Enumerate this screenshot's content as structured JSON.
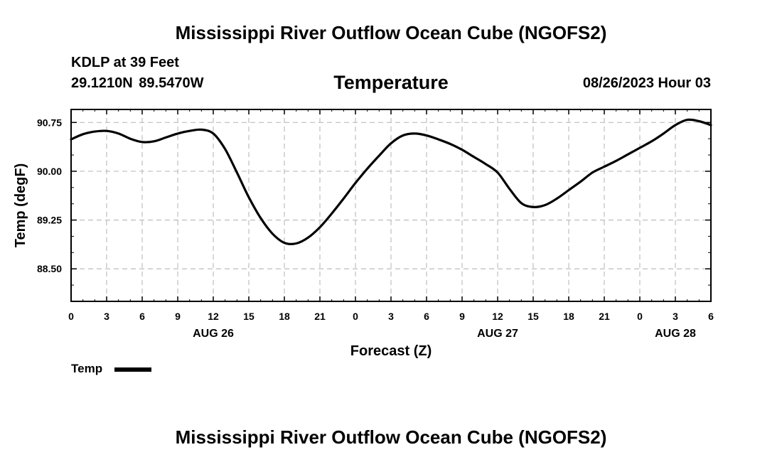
{
  "header": {
    "title": "Mississippi River Outflow Ocean Cube (NGOFS2)",
    "station": "KDLP at 39 Feet",
    "coordinates": "29.1210N  89.5470W",
    "chart_title": "Temperature",
    "datetime": "08/26/2023 Hour 03"
  },
  "footer": {
    "title": "Mississippi River Outflow Ocean Cube (NGOFS2)"
  },
  "legend": {
    "label": "Temp",
    "color": "#000000"
  },
  "chart_data": {
    "type": "line",
    "title": "Temperature",
    "xlabel": "Forecast (Z)",
    "ylabel": "Temp (degF)",
    "xlim": [
      0,
      54
    ],
    "ylim": [
      88.0,
      90.95
    ],
    "grid": true,
    "legend_position": "bottom-left",
    "x_ticks": [
      0,
      3,
      6,
      9,
      12,
      15,
      18,
      21,
      24,
      27,
      30,
      33,
      36,
      39,
      42,
      45,
      48,
      51,
      54
    ],
    "x_tick_labels": [
      "0",
      "3",
      "6",
      "9",
      "12",
      "15",
      "18",
      "21",
      "0",
      "3",
      "6",
      "9",
      "12",
      "15",
      "18",
      "21",
      "0",
      "3",
      "6"
    ],
    "day_labels": [
      {
        "x": 12,
        "label": "AUG 26"
      },
      {
        "x": 36,
        "label": "AUG 27"
      },
      {
        "x": 51,
        "label": "AUG 28"
      }
    ],
    "y_ticks": [
      88.5,
      89.25,
      90.0,
      90.75
    ],
    "y_tick_labels": [
      "88.50",
      "89.25",
      "90.00",
      "90.75"
    ],
    "series": [
      {
        "name": "Temp",
        "color": "#000000",
        "x": [
          0,
          1,
          2,
          3,
          4,
          5,
          6,
          7,
          8,
          9,
          10,
          11,
          12,
          13,
          14,
          15,
          16,
          17,
          18,
          19,
          20,
          21,
          22,
          23,
          24,
          25,
          26,
          27,
          28,
          29,
          30,
          31,
          32,
          33,
          34,
          35,
          36,
          37,
          38,
          39,
          40,
          41,
          42,
          43,
          44,
          45,
          46,
          47,
          48,
          49,
          50,
          51,
          52,
          53,
          54
        ],
        "values": [
          90.49,
          90.57,
          90.61,
          90.62,
          90.58,
          90.5,
          90.45,
          90.46,
          90.52,
          90.58,
          90.62,
          90.64,
          90.58,
          90.34,
          89.98,
          89.6,
          89.28,
          89.04,
          88.9,
          88.89,
          88.98,
          89.14,
          89.35,
          89.58,
          89.82,
          90.04,
          90.24,
          90.43,
          90.55,
          90.58,
          90.55,
          90.49,
          90.42,
          90.33,
          90.22,
          90.11,
          89.98,
          89.73,
          89.51,
          89.45,
          89.48,
          89.58,
          89.71,
          89.84,
          89.98,
          90.07,
          90.16,
          90.26,
          90.36,
          90.46,
          90.58,
          90.71,
          90.79,
          90.77,
          90.71
        ]
      }
    ]
  }
}
